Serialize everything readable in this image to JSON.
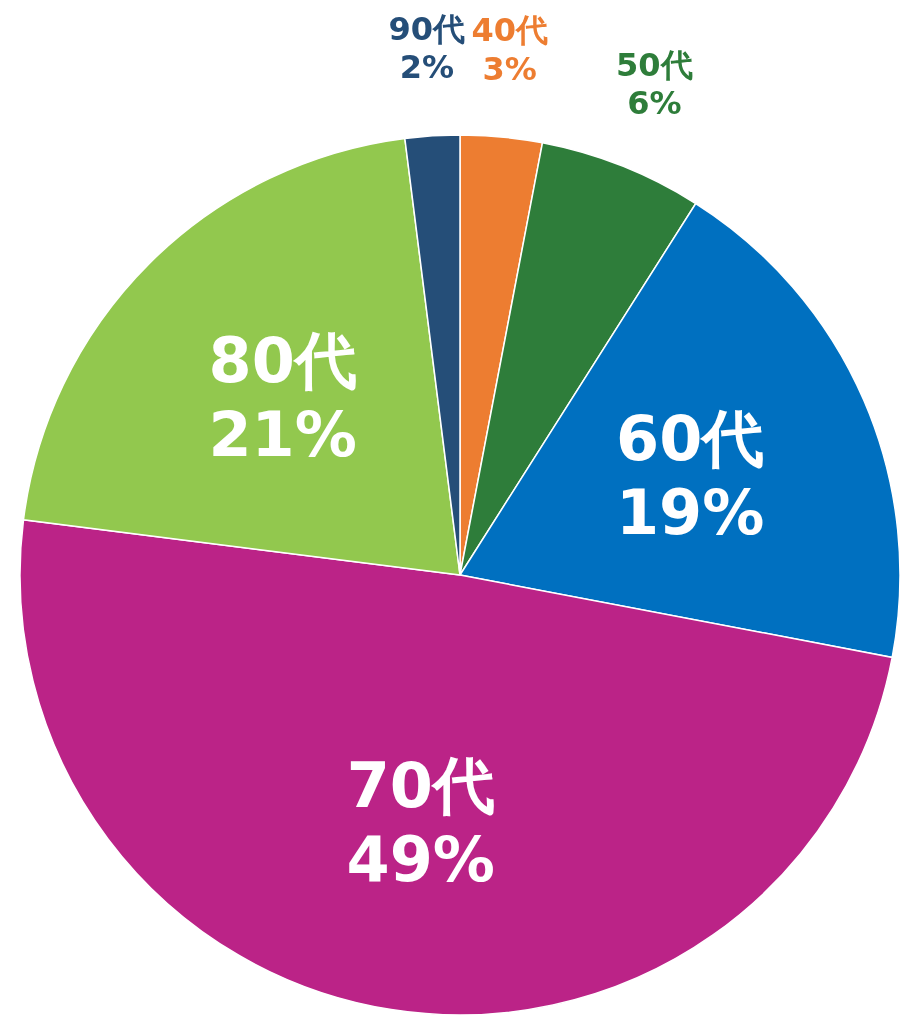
{
  "chart_data": {
    "type": "pie",
    "categories": [
      "40代",
      "50代",
      "60代",
      "70代",
      "80代",
      "90代"
    ],
    "values": [
      3,
      6,
      19,
      49,
      21,
      2
    ],
    "colors": [
      "#ed7d31",
      "#2e7d3a",
      "#0070c0",
      "#bb2387",
      "#92c84e",
      "#254e78"
    ],
    "value_labels": [
      "3%",
      "6%",
      "19%",
      "49%",
      "21%",
      "2%"
    ]
  }
}
